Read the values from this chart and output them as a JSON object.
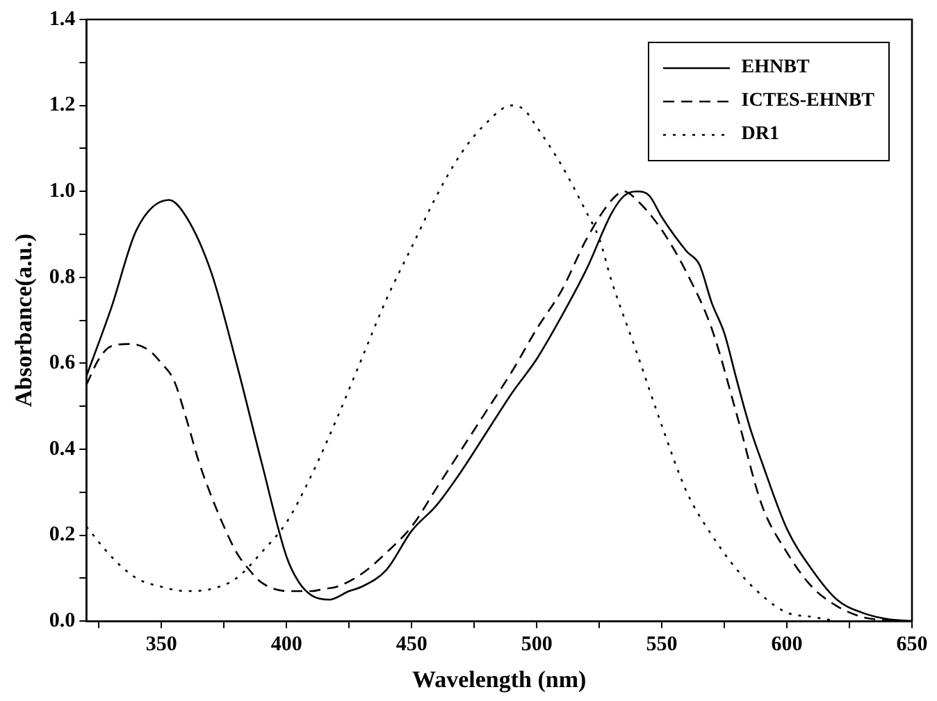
{
  "chart_data": {
    "type": "line",
    "xlabel": "Wavelength (nm)",
    "ylabel": "Absorbance(a.u.)",
    "xlim": [
      320,
      650
    ],
    "xticks": [
      {
        "value": 325,
        "label": null
      },
      350,
      {
        "value": 375,
        "label": null
      },
      400,
      {
        "value": 425,
        "label": null
      },
      450,
      {
        "value": 475,
        "label": null
      },
      500,
      {
        "value": 525,
        "label": null
      },
      550,
      {
        "value": 575,
        "label": null
      },
      600,
      {
        "value": 625,
        "label": null
      },
      650
    ],
    "ylim": [
      0,
      1.4
    ],
    "yticks": [
      {
        "value": 0,
        "label": "0.0"
      },
      {
        "value": 0.1,
        "label": null
      },
      0.2,
      {
        "value": 0.3,
        "label": null
      },
      0.4,
      {
        "value": 0.5,
        "label": null
      },
      0.6,
      {
        "value": 0.7,
        "label": null
      },
      0.8,
      {
        "value": 0.9,
        "label": null
      },
      {
        "value": 1,
        "label": "1.0"
      },
      {
        "value": 1.1,
        "label": null
      },
      1.2,
      {
        "value": 1.3,
        "label": null
      },
      1.4
    ],
    "grid": false,
    "legend": "top right",
    "marker": "none",
    "series": [
      {
        "name": "EHNBT",
        "color": "#000000",
        "line_style": "solid",
        "x": [
          320,
          330,
          340,
          353,
          360,
          370,
          380,
          390,
          400,
          405,
          410,
          417,
          425,
          430,
          440,
          450,
          460,
          470,
          480,
          490,
          500,
          510,
          520,
          530,
          535,
          540,
          545,
          550,
          560,
          565,
          570,
          575,
          580,
          585,
          590,
          600,
          610,
          620,
          630,
          640,
          650
        ],
        "values": [
          0.57,
          0.73,
          0.91,
          0.98,
          0.94,
          0.81,
          0.6,
          0.37,
          0.15,
          0.09,
          0.06,
          0.05,
          0.07,
          0.08,
          0.12,
          0.21,
          0.27,
          0.35,
          0.44,
          0.53,
          0.61,
          0.71,
          0.82,
          0.95,
          0.99,
          1.0,
          0.99,
          0.94,
          0.86,
          0.83,
          0.74,
          0.67,
          0.56,
          0.455,
          0.37,
          0.215,
          0.12,
          0.05,
          0.02,
          0.005,
          0
        ]
      },
      {
        "name": "ICTES-EHNBT",
        "color": "#000000",
        "line_style": "dashed",
        "x": [
          320,
          325,
          330,
          338,
          345,
          350,
          355,
          360,
          365,
          370,
          375,
          380,
          385,
          390,
          400,
          410,
          415,
          420,
          430,
          440,
          450,
          460,
          470,
          480,
          490,
          500,
          510,
          520,
          530,
          535,
          540,
          550,
          560,
          570,
          580,
          590,
          600,
          610,
          620,
          630,
          640,
          650
        ],
        "values": [
          0.55,
          0.61,
          0.64,
          0.645,
          0.63,
          0.6,
          0.56,
          0.47,
          0.37,
          0.29,
          0.22,
          0.16,
          0.12,
          0.09,
          0.07,
          0.07,
          0.075,
          0.08,
          0.11,
          0.16,
          0.22,
          0.31,
          0.4,
          0.49,
          0.58,
          0.68,
          0.77,
          0.89,
          0.98,
          1.0,
          0.98,
          0.91,
          0.81,
          0.68,
          0.48,
          0.27,
          0.16,
          0.08,
          0.035,
          0.01,
          0.002,
          0
        ]
      },
      {
        "name": "DR1",
        "color": "#000000",
        "line_style": "dotted",
        "x": [
          320,
          330,
          340,
          350,
          360,
          370,
          380,
          390,
          400,
          410,
          420,
          430,
          440,
          450,
          460,
          470,
          480,
          490,
          495,
          500,
          510,
          520,
          525,
          530,
          540,
          550,
          560,
          570,
          580,
          590,
          600,
          610,
          620
        ],
        "values": [
          0.22,
          0.15,
          0.1,
          0.08,
          0.07,
          0.075,
          0.1,
          0.16,
          0.23,
          0.34,
          0.47,
          0.61,
          0.75,
          0.87,
          0.99,
          1.09,
          1.16,
          1.2,
          1.19,
          1.15,
          1.06,
          0.95,
          0.89,
          0.79,
          0.625,
          0.455,
          0.3,
          0.2,
          0.12,
          0.06,
          0.02,
          0.01,
          0
        ]
      }
    ]
  }
}
